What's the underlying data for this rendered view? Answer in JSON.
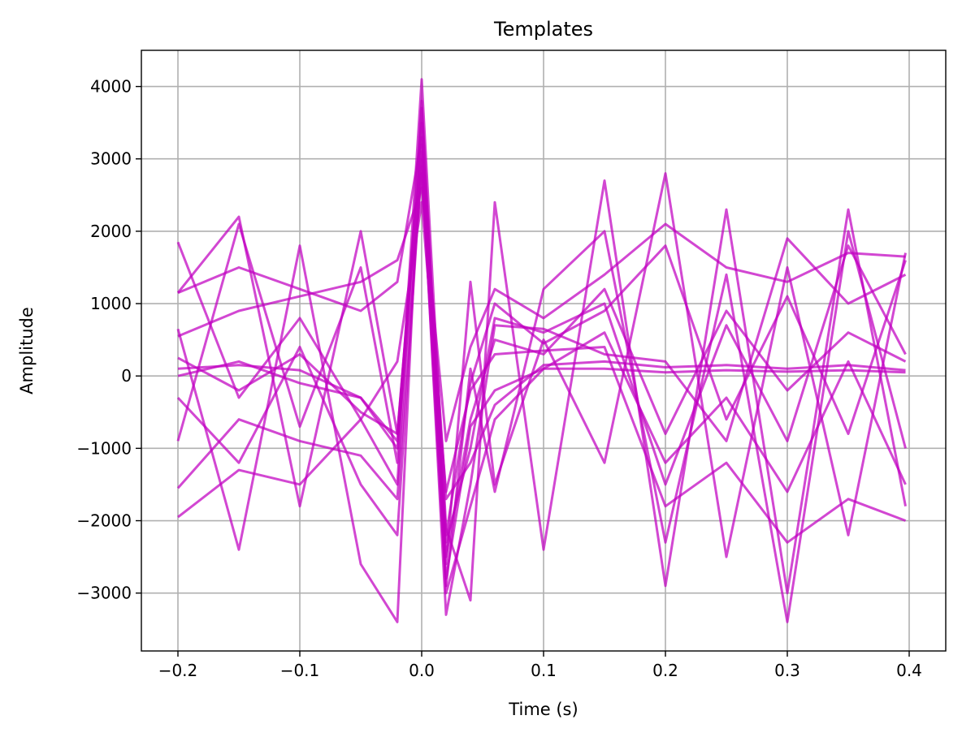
{
  "chart_data": {
    "type": "line",
    "title": "Templates",
    "xlabel": "Time (s)",
    "ylabel": "Amplitude",
    "xlim": [
      -0.23,
      0.43
    ],
    "ylim": [
      -3800,
      4500
    ],
    "xticks": [
      -0.2,
      -0.1,
      0.0,
      0.1,
      0.2,
      0.3,
      0.4
    ],
    "xtick_labels": [
      "−0.2",
      "−0.1",
      "0.0",
      "0.1",
      "0.2",
      "0.3",
      "0.4"
    ],
    "yticks": [
      -3000,
      -2000,
      -1000,
      0,
      1000,
      2000,
      3000,
      4000
    ],
    "ytick_labels": [
      "−3000",
      "−2000",
      "−1000",
      "0",
      "1000",
      "2000",
      "3000",
      "4000"
    ],
    "grid": true,
    "line_color": "#c000c0",
    "line_alpha": 0.72,
    "series": [
      {
        "x": [
          -0.2,
          -0.15,
          -0.1,
          -0.05,
          -0.02,
          0.0,
          0.02,
          0.04,
          0.06,
          0.1,
          0.15,
          0.2,
          0.25,
          0.3,
          0.35,
          0.397
        ],
        "y": [
          1850,
          -300,
          800,
          -600,
          -1500,
          3800,
          -2500,
          -600,
          500,
          300,
          1200,
          -800,
          900,
          -200,
          600,
          200
        ]
      },
      {
        "x": [
          -0.2,
          -0.15,
          -0.1,
          -0.05,
          -0.02,
          0.0,
          0.02,
          0.04,
          0.06,
          0.1,
          0.15,
          0.2,
          0.25,
          0.3,
          0.35,
          0.397
        ],
        "y": [
          1150,
          1500,
          1200,
          900,
          1300,
          3300,
          -2200,
          -100,
          1000,
          450,
          900,
          1800,
          -600,
          1100,
          -800,
          1600
        ]
      },
      {
        "x": [
          -0.2,
          -0.15,
          -0.1,
          -0.05,
          -0.02,
          0.0,
          0.02,
          0.04,
          0.06,
          0.1,
          0.15,
          0.2,
          0.25,
          0.3,
          0.35,
          0.397
        ],
        "y": [
          -1550,
          -600,
          -900,
          -1100,
          -1700,
          2900,
          -3000,
          -1800,
          -600,
          100,
          600,
          -1200,
          -300,
          -1600,
          200,
          -1500
        ]
      },
      {
        "x": [
          -0.2,
          -0.15,
          -0.1,
          -0.05,
          -0.02,
          0.0,
          0.02,
          0.04,
          0.06,
          0.1,
          0.15,
          0.2,
          0.25,
          0.3,
          0.35,
          0.397
        ],
        "y": [
          100,
          150,
          80,
          -300,
          -900,
          3500,
          -2800,
          -700,
          -200,
          100,
          100,
          50,
          80,
          60,
          80,
          50
        ]
      },
      {
        "x": [
          -0.2,
          -0.15,
          -0.1,
          -0.05,
          -0.02,
          0.0,
          0.02,
          0.04,
          0.06,
          0.1,
          0.15,
          0.2,
          0.25,
          0.3,
          0.35,
          0.397
        ],
        "y": [
          -1950,
          -1300,
          -1500,
          -600,
          200,
          2400,
          -1600,
          -200,
          300,
          350,
          400,
          -1800,
          -1200,
          -2300,
          -1700,
          -2000
        ]
      },
      {
        "x": [
          -0.2,
          -0.15,
          -0.1,
          -0.05,
          -0.02,
          0.0,
          0.02,
          0.04,
          0.06,
          0.1,
          0.15,
          0.2,
          0.25,
          0.3,
          0.35,
          0.397
        ],
        "y": [
          550,
          900,
          1100,
          1300,
          1600,
          2600,
          -900,
          400,
          1200,
          800,
          1400,
          2100,
          1500,
          1300,
          1700,
          1650
        ]
      },
      {
        "x": [
          -0.2,
          -0.15,
          -0.1,
          -0.05,
          -0.02,
          0.0,
          0.02,
          0.04,
          0.06,
          0.1,
          0.15,
          0.2,
          0.25,
          0.3,
          0.35,
          0.397
        ],
        "y": [
          -900,
          2100,
          -700,
          1500,
          -1200,
          4100,
          -2100,
          -3100,
          2400,
          -2400,
          2700,
          -2900,
          2300,
          -3000,
          2300,
          -1800
        ]
      },
      {
        "x": [
          -0.2,
          -0.15,
          -0.1,
          -0.05,
          -0.02,
          0.0,
          0.02,
          0.04,
          0.06,
          0.1,
          0.15,
          0.2,
          0.25,
          0.3,
          0.35,
          0.397
        ],
        "y": [
          250,
          -200,
          300,
          -500,
          -800,
          3200,
          -1700,
          -1200,
          -400,
          150,
          200,
          120,
          150,
          100,
          150,
          80
        ]
      },
      {
        "x": [
          -0.2,
          -0.15,
          -0.1,
          -0.05,
          -0.02,
          0.0,
          0.02,
          0.04,
          0.06,
          0.1,
          0.15,
          0.2,
          0.25,
          0.3,
          0.35,
          0.397
        ],
        "y": [
          -300,
          -1200,
          400,
          -1500,
          -2200,
          3000,
          -3300,
          -1500,
          700,
          650,
          300,
          200,
          -900,
          1900,
          1000,
          1400
        ]
      },
      {
        "x": [
          -0.2,
          -0.15,
          -0.1,
          -0.05,
          -0.02,
          0.0,
          0.02,
          0.04,
          0.06,
          0.1,
          0.15,
          0.2,
          0.25,
          0.3,
          0.35,
          0.397
        ],
        "y": [
          650,
          -2400,
          1800,
          -2600,
          -3400,
          3700,
          -2600,
          1300,
          -1500,
          500,
          -1200,
          2800,
          -2500,
          1500,
          -2200,
          1700
        ]
      },
      {
        "x": [
          -0.2,
          -0.15,
          -0.1,
          -0.05,
          -0.02,
          0.0,
          0.02,
          0.04,
          0.06,
          0.1,
          0.15,
          0.2,
          0.25,
          0.3,
          0.35,
          0.397
        ],
        "y": [
          0,
          200,
          -100,
          -300,
          -1000,
          2800,
          -2300,
          -1000,
          800,
          600,
          1000,
          -1500,
          700,
          -900,
          1800,
          300
        ]
      },
      {
        "x": [
          -0.2,
          -0.15,
          -0.1,
          -0.05,
          -0.02,
          0.0,
          0.02,
          0.04,
          0.06,
          0.1,
          0.15,
          0.2,
          0.25,
          0.3,
          0.35,
          0.397
        ],
        "y": [
          1150,
          2200,
          -1800,
          2000,
          -800,
          3100,
          -2900,
          100,
          -1600,
          1200,
          2000,
          -2300,
          1400,
          -3400,
          2000,
          -1000
        ]
      }
    ]
  }
}
